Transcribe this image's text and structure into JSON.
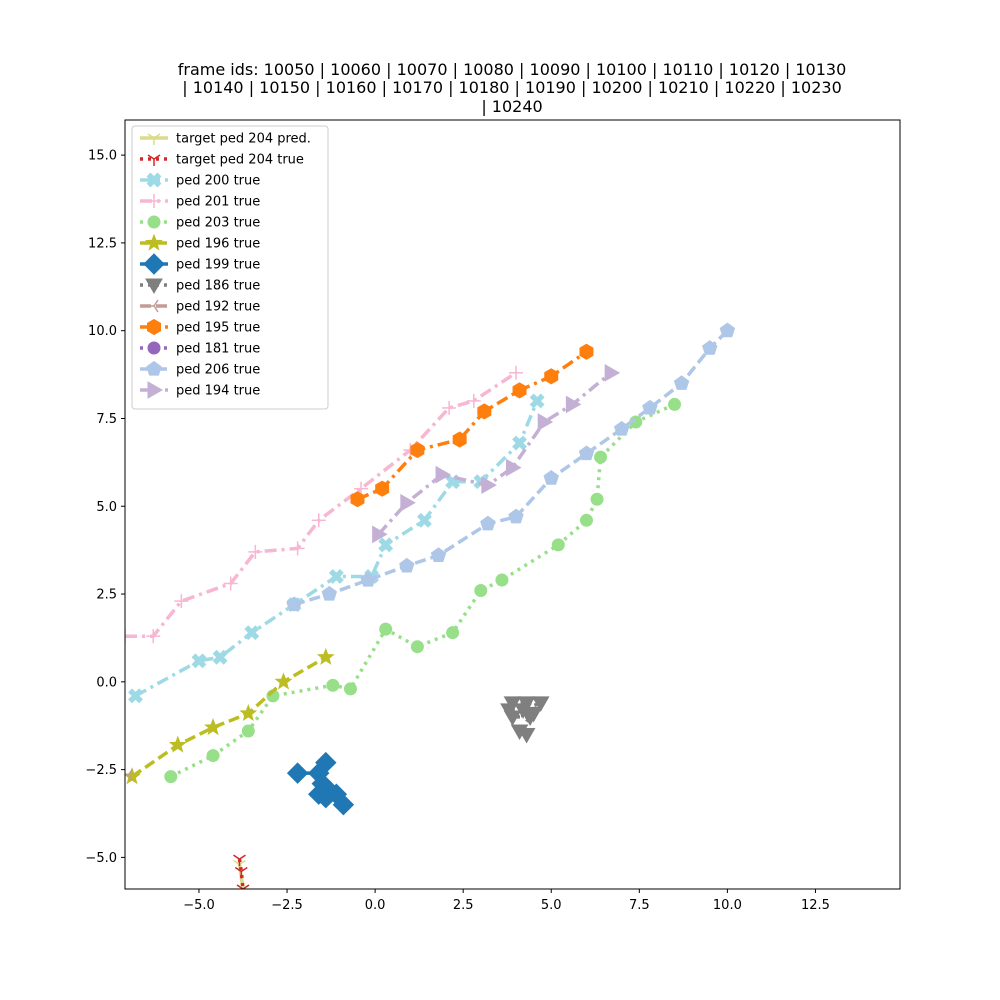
{
  "chart_data": {
    "type": "line",
    "title_lines": [
      "frame ids: 10050 | 10060 | 10070 | 10080 | 10090 | 10100 | 10110 | 10120 | 10130",
      "| 10140 | 10150 | 10160 | 10170 | 10180 | 10190 | 10200 | 10210 | 10220 | 10230",
      "| 10240"
    ],
    "xlabel": "",
    "ylabel": "",
    "xlim": [
      -7.1,
      14.9
    ],
    "ylim": [
      -5.9,
      16.0
    ],
    "xticks": [
      -5.0,
      -2.5,
      0.0,
      2.5,
      5.0,
      7.5,
      10.0,
      12.5
    ],
    "xtick_labels": [
      "−5.0",
      "−2.5",
      "0.0",
      "2.5",
      "5.0",
      "7.5",
      "10.0",
      "12.5"
    ],
    "yticks": [
      -5.0,
      -2.5,
      0.0,
      2.5,
      5.0,
      7.5,
      10.0,
      12.5,
      15.0
    ],
    "ytick_labels": [
      "−5.0",
      "−2.5",
      "0.0",
      "2.5",
      "5.0",
      "7.5",
      "10.0",
      "12.5",
      "15.0"
    ],
    "grid": false,
    "legend_position": "upper-left",
    "series": [
      {
        "name": "target ped 204 pred.",
        "color": "#dbdb8d",
        "marker": "tri_down",
        "dash": "solid",
        "x": [
          -3.85,
          -3.75
        ],
        "y": [
          -5.2,
          -5.9
        ]
      },
      {
        "name": "target ped 204 true",
        "color": "#d62728",
        "marker": "tri_down",
        "dash": "dotted",
        "x": [
          -3.85,
          -3.8,
          -3.75
        ],
        "y": [
          -5.05,
          -5.4,
          -5.9
        ]
      },
      {
        "name": "ped 200 true",
        "color": "#9edae5",
        "marker": "X",
        "dash": "dashdot",
        "x": [
          -6.8,
          -5.0,
          -4.4,
          -3.5,
          -2.3,
          -1.1,
          -0.1,
          0.3,
          1.4,
          2.2,
          3.0,
          4.1,
          4.6
        ],
        "y": [
          -0.4,
          0.6,
          0.7,
          1.4,
          2.2,
          3.0,
          3.0,
          3.9,
          4.6,
          5.7,
          5.7,
          6.8,
          8.0
        ]
      },
      {
        "name": "ped 201 true",
        "color": "#f7b6d2",
        "marker": "plus",
        "dash": "dashdot",
        "x": [
          -7.1,
          -6.3,
          -5.5,
          -4.1,
          -3.4,
          -2.2,
          -1.6,
          -0.4,
          1.0,
          2.1,
          2.8,
          4.0
        ],
        "y": [
          1.3,
          1.3,
          2.3,
          2.8,
          3.7,
          3.8,
          4.6,
          5.5,
          6.6,
          7.8,
          8.0,
          8.8
        ]
      },
      {
        "name": "ped 203 true",
        "color": "#98df8a",
        "marker": "circle",
        "dash": "dotted",
        "x": [
          -5.8,
          -4.6,
          -3.6,
          -2.9,
          -1.2,
          -0.7,
          0.3,
          1.2,
          2.2,
          3.0,
          3.6,
          5.2,
          6.0,
          6.3,
          6.4,
          7.4,
          8.5
        ],
        "y": [
          -2.7,
          -2.1,
          -1.4,
          -0.4,
          -0.1,
          -0.2,
          1.5,
          1.0,
          1.4,
          2.6,
          2.9,
          3.9,
          4.6,
          5.2,
          6.4,
          7.4,
          7.9
        ]
      },
      {
        "name": "ped 196 true",
        "color": "#bcbd22",
        "marker": "star",
        "dash": "dashed",
        "x": [
          -6.9,
          -5.6,
          -4.6,
          -3.6,
          -2.6,
          -1.4
        ],
        "y": [
          -2.7,
          -1.8,
          -1.3,
          -0.9,
          0.0,
          0.7
        ]
      },
      {
        "name": "ped 199 true",
        "color": "#1f77b4",
        "marker": "diamond",
        "dash": "solid",
        "x": [
          -2.2,
          -1.6,
          -1.4,
          -1.5,
          -1.3,
          -1.6,
          -1.4,
          -1.1,
          -0.9
        ],
        "y": [
          -2.6,
          -2.6,
          -2.3,
          -2.9,
          -3.1,
          -3.2,
          -3.3,
          -3.2,
          -3.5
        ]
      },
      {
        "name": "ped 186 true",
        "color": "#7f7f7f",
        "marker": "triangle_down",
        "dash": "dotted",
        "x": [
          3.9,
          4.3,
          4.7,
          4.2,
          3.8,
          4.5,
          3.9,
          4.4,
          4.1,
          4.3
        ],
        "y": [
          -0.6,
          -0.6,
          -0.6,
          -0.8,
          -0.8,
          -0.9,
          -1.0,
          -1.0,
          -1.4,
          -1.5
        ]
      },
      {
        "name": "ped 192 true",
        "color": "#c49c94",
        "marker": "tri_left",
        "dash": "dashed",
        "x": [
          -7.0
        ],
        "y": [
          -2.65
        ]
      },
      {
        "name": "ped 195 true",
        "color": "#ff7f0e",
        "marker": "hexagon",
        "dash": "dashdot",
        "x": [
          -0.5,
          0.2,
          1.2,
          2.4,
          3.1,
          4.1,
          5.0,
          6.0
        ],
        "y": [
          5.2,
          5.5,
          6.6,
          6.9,
          7.7,
          8.3,
          8.7,
          9.4
        ]
      },
      {
        "name": "ped 181 true",
        "color": "#9467bd",
        "marker": "circle",
        "dash": "dotted",
        "x": [],
        "y": []
      },
      {
        "name": "ped 206 true",
        "color": "#aec7e8",
        "marker": "pentagon",
        "dash": "dashed",
        "x": [
          -2.3,
          -1.3,
          -0.2,
          0.9,
          1.8,
          3.2,
          4.0,
          5.0,
          6.0,
          7.0,
          7.8,
          8.7,
          9.5,
          10.0
        ],
        "y": [
          2.2,
          2.5,
          2.9,
          3.3,
          3.6,
          4.5,
          4.7,
          5.8,
          6.5,
          7.2,
          7.8,
          8.5,
          9.5,
          10.0
        ]
      },
      {
        "name": "ped 194 true",
        "color": "#c5b0d5",
        "marker": "triangle_right",
        "dash": "dashdot",
        "x": [
          0.1,
          0.9,
          1.9,
          3.2,
          3.9,
          4.8,
          5.6,
          6.7
        ],
        "y": [
          4.2,
          5.1,
          5.9,
          5.6,
          6.1,
          7.4,
          7.9,
          8.8
        ]
      }
    ]
  }
}
